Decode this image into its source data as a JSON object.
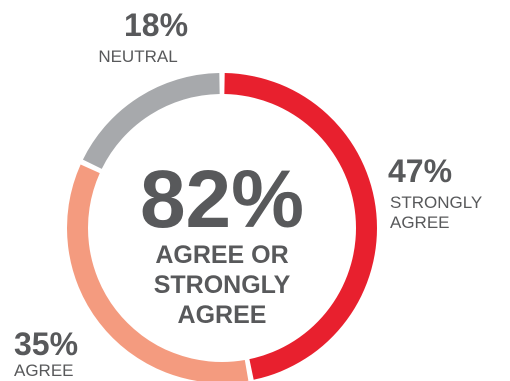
{
  "chart_data": {
    "type": "pie",
    "variant": "donut",
    "center": {
      "value": "82%",
      "label_lines": [
        "AGREE OR",
        "STRONGLY",
        "AGREE"
      ]
    },
    "slices": [
      {
        "name": "STRONGLY AGREE",
        "value_label": "47%",
        "value": 47,
        "label_lines": [
          "STRONGLY",
          "AGREE"
        ],
        "color": "#e8202e"
      },
      {
        "name": "AGREE",
        "value_label": "35%",
        "value": 35,
        "label_lines": [
          "AGREE"
        ],
        "color": "#f49b7f"
      },
      {
        "name": "NEUTRAL",
        "value_label": "18%",
        "value": 18,
        "label_lines": [
          "NEUTRAL"
        ],
        "color": "#a7a9ac"
      }
    ],
    "start_angle_deg": 0,
    "direction": "clockwise"
  }
}
